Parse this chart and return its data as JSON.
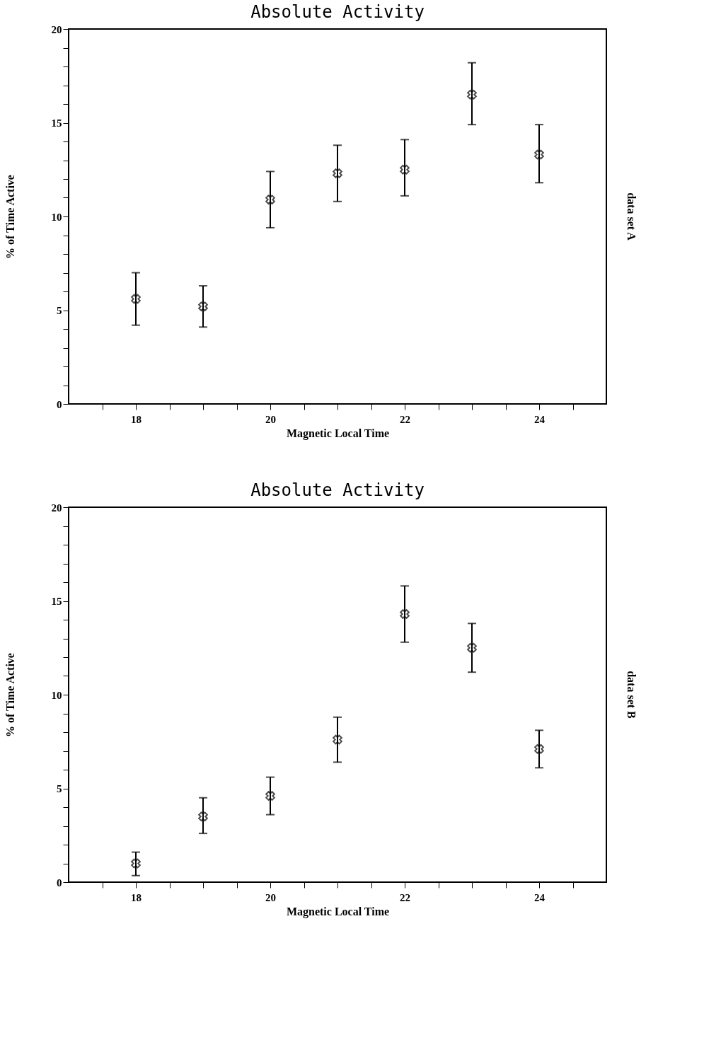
{
  "chart_data": [
    {
      "type": "scatter",
      "title": "Absolute Activity",
      "xlabel": "Magnetic Local Time",
      "ylabel": "% of Time Active",
      "y2label": "data set A",
      "x": [
        18,
        19,
        20,
        21,
        22,
        23,
        24
      ],
      "series": [
        {
          "color": "#000000",
          "values": [
            5.6,
            5.2,
            10.9,
            12.3,
            12.5,
            16.5,
            13.3
          ],
          "errors": [
            [
              4.2,
              7.0
            ],
            [
              4.1,
              6.3
            ],
            [
              9.4,
              12.4
            ],
            [
              10.8,
              13.8
            ],
            [
              11.1,
              14.1
            ],
            [
              14.9,
              18.2
            ],
            [
              11.8,
              14.9
            ]
          ]
        }
      ],
      "marker": "cross",
      "grid": false,
      "xlim": [
        17,
        25
      ],
      "ylim": [
        0,
        20
      ],
      "xticks": [
        {
          "value": 17.5,
          "label": null
        },
        18,
        {
          "value": 18.5,
          "label": null
        },
        {
          "value": 19,
          "label": null
        },
        {
          "value": 19.5,
          "label": null
        },
        20,
        {
          "value": 20.5,
          "label": null
        },
        {
          "value": 21,
          "label": null
        },
        {
          "value": 21.5,
          "label": null
        },
        22,
        {
          "value": 22.5,
          "label": null
        },
        {
          "value": 23,
          "label": null
        },
        {
          "value": 23.5,
          "label": null
        },
        24,
        {
          "value": 24.5,
          "label": null
        }
      ],
      "yticks": [
        0,
        {
          "value": 1,
          "label": null
        },
        {
          "value": 2,
          "label": null
        },
        {
          "value": 3,
          "label": null
        },
        {
          "value": 4,
          "label": null
        },
        5,
        {
          "value": 6,
          "label": null
        },
        {
          "value": 7,
          "label": null
        },
        {
          "value": 8,
          "label": null
        },
        {
          "value": 9,
          "label": null
        },
        10,
        {
          "value": 11,
          "label": null
        },
        {
          "value": 12,
          "label": null
        },
        {
          "value": 13,
          "label": null
        },
        {
          "value": 14,
          "label": null
        },
        15,
        {
          "value": 16,
          "label": null
        },
        {
          "value": 17,
          "label": null
        },
        {
          "value": 18,
          "label": null
        },
        {
          "value": 19,
          "label": null
        },
        20
      ]
    },
    {
      "type": "scatter",
      "title": "Absolute Activity",
      "xlabel": "Magnetic Local Time",
      "ylabel": "% of Time Active",
      "y2label": "data set B",
      "x": [
        18,
        19,
        20,
        21,
        22,
        23,
        24
      ],
      "series": [
        {
          "color": "#000000",
          "values": [
            1.0,
            3.5,
            4.6,
            7.6,
            14.3,
            12.5,
            7.1
          ],
          "errors": [
            [
              0.35,
              1.6
            ],
            [
              2.6,
              4.5
            ],
            [
              3.6,
              5.6
            ],
            [
              6.4,
              8.8
            ],
            [
              12.8,
              15.8
            ],
            [
              11.2,
              13.8
            ],
            [
              6.1,
              8.1
            ]
          ]
        }
      ],
      "marker": "cross",
      "grid": false,
      "xlim": [
        17,
        25
      ],
      "ylim": [
        0,
        20
      ],
      "xticks": [
        {
          "value": 17.5,
          "label": null
        },
        18,
        {
          "value": 18.5,
          "label": null
        },
        {
          "value": 19,
          "label": null
        },
        {
          "value": 19.5,
          "label": null
        },
        20,
        {
          "value": 20.5,
          "label": null
        },
        {
          "value": 21,
          "label": null
        },
        {
          "value": 21.5,
          "label": null
        },
        22,
        {
          "value": 22.5,
          "label": null
        },
        {
          "value": 23,
          "label": null
        },
        {
          "value": 23.5,
          "label": null
        },
        24,
        {
          "value": 24.5,
          "label": null
        }
      ],
      "yticks": [
        0,
        {
          "value": 1,
          "label": null
        },
        {
          "value": 2,
          "label": null
        },
        {
          "value": 3,
          "label": null
        },
        {
          "value": 4,
          "label": null
        },
        5,
        {
          "value": 6,
          "label": null
        },
        {
          "value": 7,
          "label": null
        },
        {
          "value": 8,
          "label": null
        },
        {
          "value": 9,
          "label": null
        },
        10,
        {
          "value": 11,
          "label": null
        },
        {
          "value": 12,
          "label": null
        },
        {
          "value": 13,
          "label": null
        },
        {
          "value": 14,
          "label": null
        },
        15,
        {
          "value": 16,
          "label": null
        },
        {
          "value": 17,
          "label": null
        },
        {
          "value": 18,
          "label": null
        },
        {
          "value": 19,
          "label": null
        },
        20
      ]
    }
  ]
}
